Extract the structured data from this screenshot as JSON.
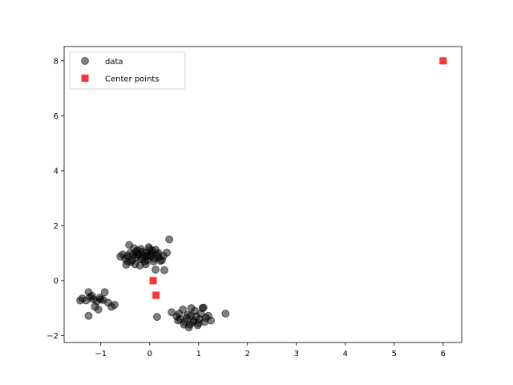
{
  "chart_data": {
    "type": "scatter",
    "title": "",
    "xlabel": "",
    "ylabel": "",
    "xlim": [
      -1.75,
      6.38
    ],
    "ylim": [
      -2.25,
      8.52
    ],
    "xticks": [
      -1,
      0,
      1,
      2,
      3,
      4,
      5,
      6
    ],
    "yticks": [
      -2,
      0,
      2,
      4,
      6,
      8
    ],
    "xtick_labels": [
      "−1",
      "0",
      "1",
      "2",
      "3",
      "4",
      "5",
      "6"
    ],
    "ytick_labels": [
      "−2",
      "0",
      "2",
      "4",
      "6",
      "8"
    ],
    "grid": false,
    "legend_position": "upper-left",
    "series": [
      {
        "name": "data",
        "marker": "circle",
        "color": "#000000",
        "alpha": 0.5,
        "points": [
          [
            -0.28,
            0.85
          ],
          [
            -0.22,
            0.95
          ],
          [
            -0.15,
            1.05
          ],
          [
            -0.05,
            0.9
          ],
          [
            0.05,
            1.0
          ],
          [
            -0.35,
            0.75
          ],
          [
            -0.1,
            0.7
          ],
          [
            0.1,
            0.8
          ],
          [
            -0.45,
            0.9
          ],
          [
            -0.25,
            1.1
          ],
          [
            0.0,
            1.15
          ],
          [
            0.15,
            0.95
          ],
          [
            -0.3,
            0.6
          ],
          [
            -0.18,
            0.78
          ],
          [
            -0.08,
            1.02
          ],
          [
            0.02,
            0.88
          ],
          [
            -0.4,
            1.0
          ],
          [
            -0.12,
            0.92
          ],
          [
            0.08,
            0.7
          ],
          [
            0.18,
            0.85
          ],
          [
            -0.5,
            0.8
          ],
          [
            -0.55,
            0.95
          ],
          [
            -0.38,
            0.68
          ],
          [
            -0.2,
            0.55
          ],
          [
            0.25,
            0.75
          ],
          [
            0.28,
            0.9
          ],
          [
            0.35,
            1.02
          ],
          [
            0.12,
            1.12
          ],
          [
            -0.02,
            1.22
          ],
          [
            -0.32,
            1.18
          ],
          [
            -0.42,
            1.3
          ],
          [
            0.4,
            1.5
          ],
          [
            -0.6,
            0.88
          ],
          [
            -0.48,
            0.58
          ],
          [
            -0.08,
            0.6
          ],
          [
            0.3,
            0.38
          ],
          [
            0.12,
            0.4
          ],
          [
            0.22,
            0.72
          ],
          [
            -0.25,
            0.95
          ],
          [
            -0.15,
            0.82
          ],
          [
            -0.05,
            0.75
          ],
          [
            0.05,
            1.1
          ],
          [
            -0.35,
            0.92
          ],
          [
            -0.28,
            1.05
          ],
          [
            0.0,
            0.95
          ],
          [
            -0.18,
            1.15
          ],
          [
            -0.45,
            0.7
          ],
          [
            0.18,
            1.0
          ],
          [
            -1.38,
            -0.65
          ],
          [
            -1.3,
            -0.72
          ],
          [
            -1.22,
            -0.6
          ],
          [
            -1.15,
            -0.68
          ],
          [
            -1.08,
            -0.75
          ],
          [
            -1.02,
            -0.62
          ],
          [
            -0.95,
            -0.7
          ],
          [
            -0.92,
            -0.42
          ],
          [
            -1.25,
            -0.42
          ],
          [
            -1.42,
            -0.72
          ],
          [
            -0.85,
            -0.8
          ],
          [
            -0.78,
            -0.95
          ],
          [
            -0.72,
            -0.88
          ],
          [
            -1.05,
            -1.05
          ],
          [
            -1.12,
            -0.95
          ],
          [
            -1.25,
            -1.28
          ],
          [
            -1.18,
            -0.55
          ],
          [
            -1.0,
            -0.68
          ],
          [
            0.45,
            -1.15
          ],
          [
            0.55,
            -1.3
          ],
          [
            0.62,
            -1.4
          ],
          [
            0.68,
            -1.05
          ],
          [
            0.72,
            -1.5
          ],
          [
            0.78,
            -1.25
          ],
          [
            0.82,
            -1.6
          ],
          [
            0.85,
            -1.0
          ],
          [
            0.9,
            -1.45
          ],
          [
            0.95,
            -1.3
          ],
          [
            1.0,
            -1.55
          ],
          [
            1.05,
            -1.2
          ],
          [
            1.1,
            -0.98
          ],
          [
            1.15,
            -1.35
          ],
          [
            1.2,
            -1.28
          ],
          [
            1.25,
            -1.45
          ],
          [
            0.6,
            -1.2
          ],
          [
            0.75,
            -1.35
          ],
          [
            0.88,
            -1.52
          ],
          [
            0.98,
            -1.62
          ],
          [
            1.02,
            -1.4
          ],
          [
            0.7,
            -1.6
          ],
          [
            0.8,
            -1.7
          ],
          [
            0.92,
            -1.1
          ],
          [
            1.08,
            -1.0
          ],
          [
            1.55,
            -1.2
          ],
          [
            0.15,
            -1.32
          ],
          [
            0.58,
            -1.45
          ],
          [
            0.84,
            -1.28
          ],
          [
            1.12,
            -1.5
          ]
        ]
      },
      {
        "name": "Center points",
        "marker": "square",
        "color": "#ff0000",
        "alpha": 0.8,
        "points": [
          [
            6.0,
            8.0
          ],
          [
            0.07,
            0.0
          ],
          [
            0.13,
            -0.53
          ]
        ]
      }
    ]
  }
}
